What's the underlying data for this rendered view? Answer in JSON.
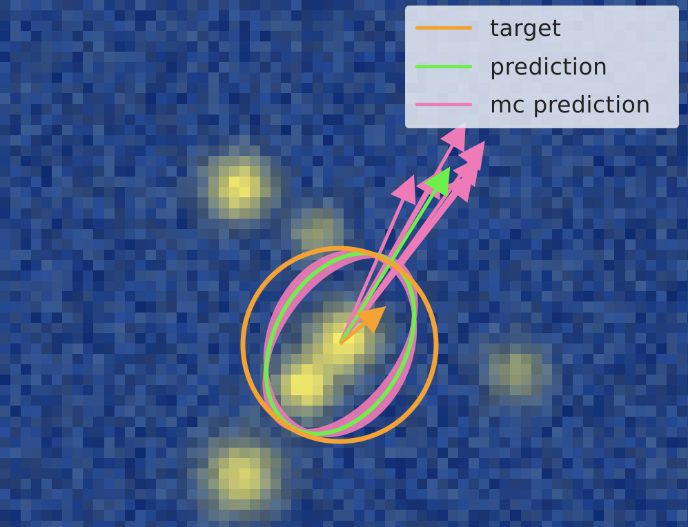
{
  "legend": {
    "items": [
      {
        "label": "target",
        "color": "#f4a233"
      },
      {
        "label": "prediction",
        "color": "#6ef04a"
      },
      {
        "label": "mc prediction",
        "color": "#ee7ab8"
      }
    ]
  },
  "colors": {
    "background_dark": "#1e3a78",
    "background_mid": "#2f4f8f",
    "blob_bright": "#f7ec6a",
    "target": "#f4a233",
    "prediction": "#6ef04a",
    "mc_prediction": "#ee7ab8"
  }
}
